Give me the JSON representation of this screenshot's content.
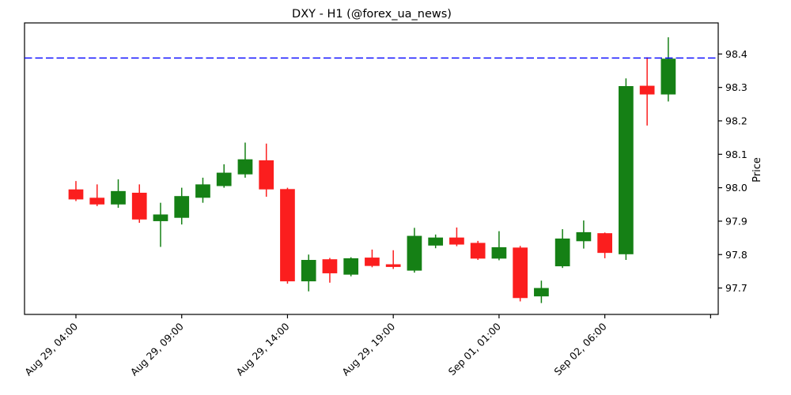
{
  "chart_data": {
    "type": "candlestick",
    "title": "DXY - H1 (@forex_ua_news)",
    "ylabel": "Price",
    "ylabel_side": "right",
    "grid": false,
    "legend": null,
    "xlim": [
      -2.43,
      30.36
    ],
    "ylim": [
      97.621,
      98.493
    ],
    "colors": {
      "up": "#158015",
      "down": "#fb1e1e",
      "hline": "#0000ff",
      "axis": "#000000"
    },
    "hline": {
      "value": 98.388,
      "style": "dashed"
    },
    "yticks": [
      {
        "v": 97.7,
        "label": "97.7"
      },
      {
        "v": 97.8,
        "label": "97.8"
      },
      {
        "v": 97.9,
        "label": "97.9"
      },
      {
        "v": 98.0,
        "label": "98.0"
      },
      {
        "v": 98.1,
        "label": "98.1"
      },
      {
        "v": 98.2,
        "label": "98.2"
      },
      {
        "v": 98.3,
        "label": "98.3"
      },
      {
        "v": 98.4,
        "label": "98.4"
      }
    ],
    "xticks": [
      {
        "i": 0,
        "label": "Aug 29, 04:00"
      },
      {
        "i": 5,
        "label": "Aug 29, 09:00"
      },
      {
        "i": 10,
        "label": "Aug 29, 14:00"
      },
      {
        "i": 15,
        "label": "Aug 29, 19:00"
      },
      {
        "i": 20,
        "label": "Sep 01, 01:00"
      },
      {
        "i": 25,
        "label": "Sep 02, 06:00"
      },
      {
        "i": 30,
        "label": ""
      }
    ],
    "candles": [
      {
        "i": 0,
        "o": 97.995,
        "h": 98.02,
        "l": 97.96,
        "c": 97.965
      },
      {
        "i": 1,
        "o": 97.97,
        "h": 98.01,
        "l": 97.945,
        "c": 97.95
      },
      {
        "i": 2,
        "o": 97.95,
        "h": 98.025,
        "l": 97.94,
        "c": 97.99
      },
      {
        "i": 3,
        "o": 97.985,
        "h": 98.01,
        "l": 97.895,
        "c": 97.905
      },
      {
        "i": 4,
        "o": 97.9,
        "h": 97.955,
        "l": 97.823,
        "c": 97.92
      },
      {
        "i": 5,
        "o": 97.91,
        "h": 98.0,
        "l": 97.89,
        "c": 97.975
      },
      {
        "i": 6,
        "o": 97.97,
        "h": 98.03,
        "l": 97.955,
        "c": 98.01
      },
      {
        "i": 7,
        "o": 98.005,
        "h": 98.07,
        "l": 98.0,
        "c": 98.045
      },
      {
        "i": 8,
        "o": 98.04,
        "h": 98.135,
        "l": 98.03,
        "c": 98.085
      },
      {
        "i": 9,
        "o": 98.082,
        "h": 98.132,
        "l": 97.973,
        "c": 97.995
      },
      {
        "i": 10,
        "o": 97.996,
        "h": 98.0,
        "l": 97.713,
        "c": 97.72
      },
      {
        "i": 11,
        "o": 97.72,
        "h": 97.8,
        "l": 97.69,
        "c": 97.784
      },
      {
        "i": 12,
        "o": 97.786,
        "h": 97.79,
        "l": 97.716,
        "c": 97.744
      },
      {
        "i": 13,
        "o": 97.74,
        "h": 97.792,
        "l": 97.735,
        "c": 97.789
      },
      {
        "i": 14,
        "o": 97.791,
        "h": 97.815,
        "l": 97.762,
        "c": 97.766
      },
      {
        "i": 15,
        "o": 97.771,
        "h": 97.813,
        "l": 97.757,
        "c": 97.763
      },
      {
        "i": 16,
        "o": 97.752,
        "h": 97.88,
        "l": 97.746,
        "c": 97.856
      },
      {
        "i": 17,
        "o": 97.827,
        "h": 97.86,
        "l": 97.819,
        "c": 97.851
      },
      {
        "i": 18,
        "o": 97.851,
        "h": 97.881,
        "l": 97.825,
        "c": 97.83
      },
      {
        "i": 19,
        "o": 97.835,
        "h": 97.841,
        "l": 97.784,
        "c": 97.788
      },
      {
        "i": 20,
        "o": 97.788,
        "h": 97.87,
        "l": 97.783,
        "c": 97.822
      },
      {
        "i": 21,
        "o": 97.821,
        "h": 97.826,
        "l": 97.66,
        "c": 97.67
      },
      {
        "i": 22,
        "o": 97.675,
        "h": 97.722,
        "l": 97.655,
        "c": 97.7
      },
      {
        "i": 23,
        "o": 97.765,
        "h": 97.876,
        "l": 97.76,
        "c": 97.848
      },
      {
        "i": 24,
        "o": 97.84,
        "h": 97.902,
        "l": 97.818,
        "c": 97.867
      },
      {
        "i": 25,
        "o": 97.864,
        "h": 97.866,
        "l": 97.789,
        "c": 97.805
      },
      {
        "i": 26,
        "o": 97.801,
        "h": 98.327,
        "l": 97.784,
        "c": 98.304
      },
      {
        "i": 27,
        "o": 98.305,
        "h": 98.39,
        "l": 98.186,
        "c": 98.279
      },
      {
        "i": 28,
        "o": 98.279,
        "h": 98.45,
        "l": 98.258,
        "c": 98.386
      }
    ]
  }
}
